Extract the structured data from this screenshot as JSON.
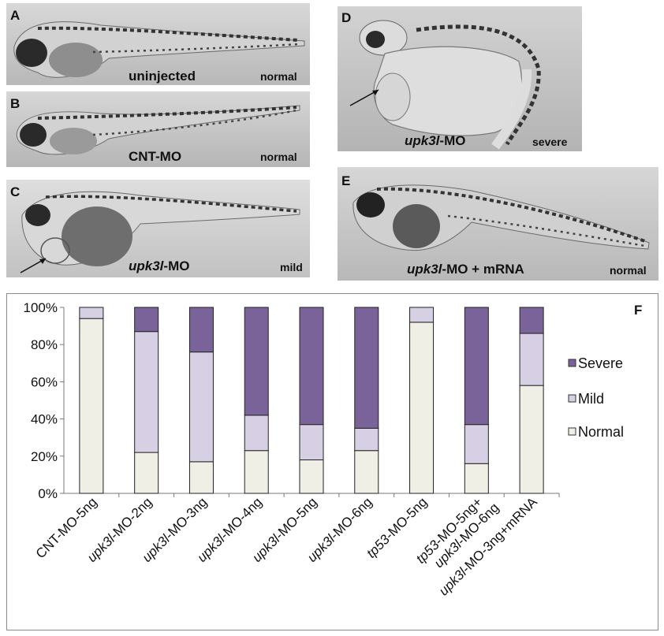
{
  "panels": {
    "A": {
      "letter": "A",
      "label": "uninjected",
      "phenotype": "normal"
    },
    "B": {
      "letter": "B",
      "label": "CNT-MO",
      "phenotype": "normal"
    },
    "C": {
      "letter": "C",
      "label_italic": "upk3l",
      "label_rest": "-MO",
      "phenotype": "mild"
    },
    "D": {
      "letter": "D",
      "label_italic": "upk3l",
      "label_rest": "-MO",
      "phenotype": "severe"
    },
    "E": {
      "letter": "E",
      "label_italic": "upk3l",
      "label_rest": "-MO + mRNA",
      "phenotype": "normal"
    }
  },
  "chart_data": {
    "type": "bar",
    "stacked": true,
    "panel_letter": "F",
    "categories": [
      {
        "lines": [
          {
            "italic": "",
            "rest": "CNT-MO-5ng"
          }
        ]
      },
      {
        "lines": [
          {
            "italic": "upk3l",
            "rest": "-MO-2ng"
          }
        ]
      },
      {
        "lines": [
          {
            "italic": "upk3l",
            "rest": "-MO-3ng"
          }
        ]
      },
      {
        "lines": [
          {
            "italic": "upk3l",
            "rest": "-MO-4ng"
          }
        ]
      },
      {
        "lines": [
          {
            "italic": "upk3l",
            "rest": "-MO-5ng"
          }
        ]
      },
      {
        "lines": [
          {
            "italic": "upk3l",
            "rest": "-MO-6ng"
          }
        ]
      },
      {
        "lines": [
          {
            "italic": "tp53",
            "rest": "-MO-5ng"
          }
        ]
      },
      {
        "lines": [
          {
            "italic": "tp53",
            "rest": "-MO-5ng+"
          },
          {
            "italic": "upk3l",
            "rest": "-MO-6ng"
          }
        ]
      },
      {
        "lines": [
          {
            "italic": "upk3l",
            "rest": "-MO-3ng+"
          },
          {
            "italic": "",
            "rest": "mRNA"
          }
        ]
      }
    ],
    "series": [
      {
        "name": "Normal",
        "color": "#efefe6",
        "values": [
          94,
          22,
          17,
          23,
          18,
          23,
          92,
          16,
          58
        ]
      },
      {
        "name": "Mild",
        "color": "#d7cfe4",
        "values": [
          6,
          65,
          59,
          19,
          19,
          12,
          8,
          21,
          28
        ]
      },
      {
        "name": "Severe",
        "color": "#7a6399",
        "values": [
          0,
          13,
          24,
          58,
          63,
          65,
          0,
          63,
          14
        ]
      }
    ],
    "legend_order": [
      "Severe",
      "Mild",
      "Normal"
    ],
    "yticks": [
      "0%",
      "20%",
      "40%",
      "60%",
      "80%",
      "100%"
    ],
    "ylim": [
      0,
      100
    ],
    "legend_position": "right"
  }
}
